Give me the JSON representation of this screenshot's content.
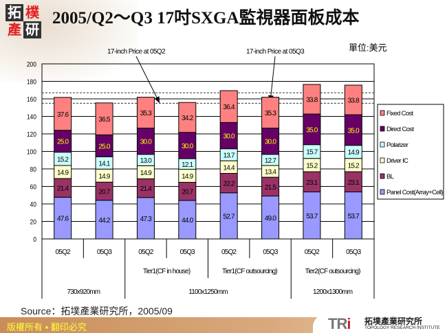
{
  "header": {
    "logo_chars": [
      "拓",
      "樸",
      "產",
      "研"
    ],
    "title": "2005/Q2～Q3 17吋SXGA監視器面板成本",
    "unit": "單位:美元"
  },
  "chart_data": {
    "type": "stacked-bar",
    "ylim": [
      0,
      200
    ],
    "yticks": [
      0,
      20,
      40,
      60,
      80,
      100,
      120,
      140,
      160,
      180,
      200
    ],
    "grid": true,
    "legend_position": "right",
    "categories": [
      "05Q2",
      "05Q3",
      "05Q2",
      "05Q3",
      "05Q2",
      "05Q3",
      "05Q2",
      "05Q3"
    ],
    "group_labels": [
      {
        "label": "Tier1(CF in house)",
        "span": [
          2,
          3
        ]
      },
      {
        "label": "Tier1(CF outsourcing)",
        "span": [
          4,
          5
        ]
      },
      {
        "label": "Tier2(CF outsourcing)",
        "span": [
          6,
          7
        ]
      }
    ],
    "size_labels": [
      {
        "label": "730x920mm",
        "span": [
          0,
          1
        ]
      },
      {
        "label": "1100x1250mm",
        "span": [
          2,
          5
        ]
      },
      {
        "label": "1200x1300mm",
        "span": [
          6,
          7
        ]
      }
    ],
    "series": [
      {
        "name": "Panel Cost(Array+Cell)",
        "color": "#9999FF",
        "label_color": "#000000",
        "values": [
          47.6,
          44.2,
          47.3,
          44.0,
          52.7,
          49.0,
          53.7,
          53.7
        ]
      },
      {
        "name": "BL",
        "color": "#993366",
        "label_color": "#000000",
        "values": [
          21.4,
          20.7,
          21.4,
          20.7,
          22.2,
          21.5,
          23.1,
          23.1
        ]
      },
      {
        "name": "Driver IC",
        "color": "#FFFFCC",
        "label_color": "#000000",
        "values": [
          14.9,
          14.9,
          14.9,
          14.9,
          14.4,
          13.4,
          15.2,
          15.2
        ]
      },
      {
        "name": "Polarizer",
        "color": "#CCFFFF",
        "label_color": "#000000",
        "values": [
          15.2,
          14.1,
          13.0,
          12.1,
          13.7,
          12.7,
          15.7,
          14.9
        ]
      },
      {
        "name": "Direct Cost",
        "color": "#660066",
        "label_color": "#FFFF00",
        "values": [
          25.0,
          25.0,
          30.0,
          30.0,
          30.0,
          30.0,
          35.0,
          35.0
        ]
      },
      {
        "name": "Fixed Cost",
        "color": "#FF8080",
        "label_color": "#000000",
        "values": [
          37.6,
          36.5,
          35.3,
          34.2,
          36.4,
          35.3,
          33.8,
          33.8
        ]
      }
    ],
    "reference_lines": [
      {
        "label": "17-inch Price at 05Q2",
        "value": 155
      },
      {
        "label": "17-inch Price at 05Q3",
        "value": 167
      }
    ]
  },
  "source": "Source：拓墣產業研究所，2005/09",
  "footer": {
    "copyright": "版權所有 ▪ 翻印必究",
    "logo_mark": "TRi",
    "logo_cn": "拓墣產業研究所",
    "logo_en": "TOPOLOGY RESEARCH INSTITUTE"
  }
}
